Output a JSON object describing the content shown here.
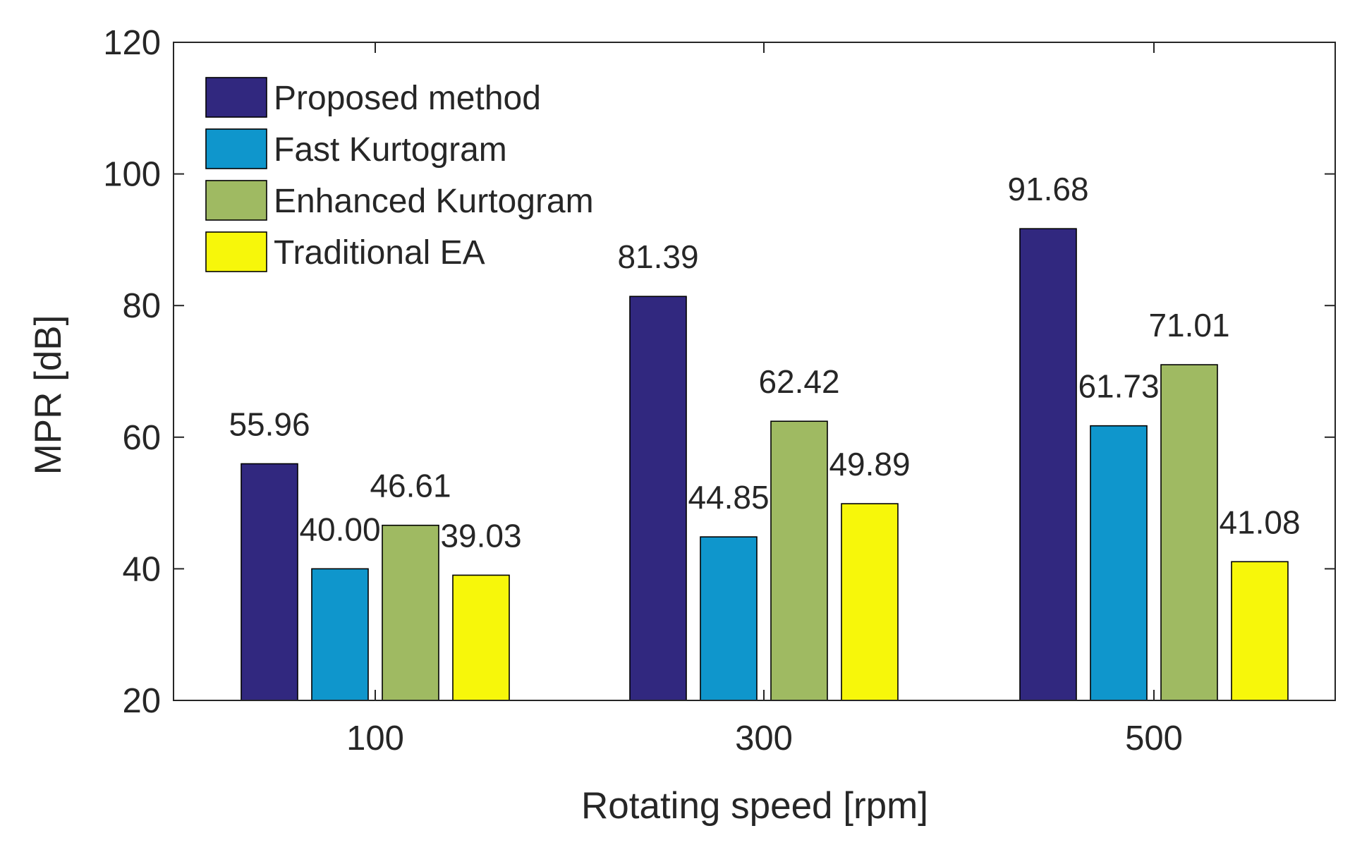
{
  "chart_data": {
    "type": "bar",
    "title": "",
    "xlabel": "Rotating speed [rpm]",
    "ylabel": "MPR [dB]",
    "categories": [
      "100",
      "300",
      "500"
    ],
    "ylim": [
      20,
      120
    ],
    "yticks": [
      20,
      40,
      60,
      80,
      100,
      120
    ],
    "grid": false,
    "legend_position": "top-left",
    "series": [
      {
        "name": "Proposed method",
        "color": "#31287f",
        "values": [
          55.96,
          81.39,
          91.68
        ],
        "labels": [
          "55.96",
          "81.39",
          "91.68"
        ]
      },
      {
        "name": "Fast Kurtogram",
        "color": "#0f96cc",
        "values": [
          40.0,
          44.85,
          61.73
        ],
        "labels": [
          "40.00",
          "44.85",
          "61.73"
        ]
      },
      {
        "name": "Enhanced Kurtogram",
        "color": "#9fba62",
        "values": [
          46.61,
          62.42,
          71.01
        ],
        "labels": [
          "46.61",
          "62.42",
          "71.01"
        ]
      },
      {
        "name": "Traditional EA",
        "color": "#f7f70a",
        "values": [
          39.03,
          49.89,
          41.08
        ],
        "labels": [
          "39.03",
          "49.89",
          "41.08"
        ]
      }
    ]
  }
}
